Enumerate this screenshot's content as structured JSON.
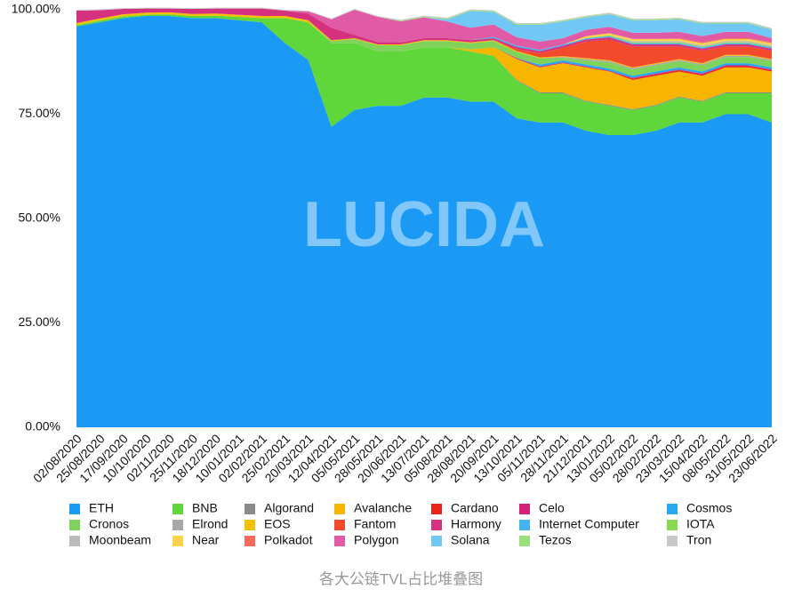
{
  "chart_data": {
    "type": "stacked_area_percent",
    "title": "各大公链TVL占比堆叠图",
    "watermark": "LUCIDA",
    "categories": [
      "02/08/2020",
      "25/08/2020",
      "17/09/2020",
      "10/10/2020",
      "02/11/2020",
      "25/11/2020",
      "18/12/2020",
      "10/01/2021",
      "02/02/2021",
      "25/02/2021",
      "20/03/2021",
      "12/04/2021",
      "05/05/2021",
      "28/05/2021",
      "20/06/2021",
      "13/07/2021",
      "05/08/2021",
      "28/08/2021",
      "20/09/2021",
      "13/10/2021",
      "05/11/2021",
      "28/11/2021",
      "21/12/2021",
      "13/01/2022",
      "05/02/2022",
      "28/02/2022",
      "23/03/2022",
      "15/04/2022",
      "08/05/2022",
      "31/05/2022",
      "23/06/2022"
    ],
    "ylim": [
      0,
      100
    ],
    "yticks": [
      {
        "value": 0,
        "label": "0.00%"
      },
      {
        "value": 25,
        "label": "25.00%"
      },
      {
        "value": 50,
        "label": "50.00%"
      },
      {
        "value": 75,
        "label": "75.00%"
      },
      {
        "value": 100,
        "label": "100.00%"
      }
    ],
    "series": [
      {
        "name": "ETH",
        "color": "#1a9af5",
        "values": [
          96,
          97,
          98,
          98.5,
          98.5,
          98,
          98,
          97.5,
          97,
          92,
          88,
          72,
          76,
          77,
          77,
          79,
          79,
          78,
          78,
          74,
          73,
          73,
          71,
          70,
          70,
          71,
          73,
          73,
          75,
          75,
          73
        ]
      },
      {
        "name": "BNB",
        "color": "#5fd63a",
        "values": [
          0.3,
          0.4,
          0.4,
          0.3,
          0.4,
          0.5,
          0.6,
          0.8,
          1,
          6,
          9,
          20,
          16,
          13,
          13,
          12,
          12,
          12,
          11,
          9,
          7,
          7,
          7,
          7,
          6,
          6,
          6,
          5,
          5,
          5,
          7
        ]
      },
      {
        "name": "Algorand",
        "color": "#8a8a8a",
        "values": [
          0,
          0,
          0,
          0,
          0,
          0,
          0,
          0,
          0,
          0,
          0,
          0,
          0,
          0,
          0,
          0,
          0,
          0,
          0,
          0.2,
          0.2,
          0.2,
          0.2,
          0.2,
          0.2,
          0.2,
          0.2,
          0.2,
          0.2,
          0.2,
          0.2
        ]
      },
      {
        "name": "Avalanche",
        "color": "#f7b500",
        "values": [
          0,
          0,
          0,
          0,
          0,
          0,
          0,
          0,
          0,
          0,
          0,
          0,
          0,
          0,
          0,
          0,
          0,
          0.5,
          2,
          5,
          6,
          7,
          8,
          8,
          7,
          7,
          6,
          6,
          6,
          6,
          5
        ]
      },
      {
        "name": "Cardano",
        "color": "#e8251b",
        "values": [
          0,
          0,
          0,
          0,
          0,
          0,
          0,
          0,
          0,
          0,
          0,
          0,
          0,
          0,
          0,
          0,
          0,
          0,
          0,
          0,
          0,
          0,
          0,
          0,
          0.3,
          0.3,
          0.3,
          0.3,
          0.3,
          0.3,
          0.3
        ]
      },
      {
        "name": "Celo",
        "color": "#d6217a",
        "values": [
          0,
          0,
          0,
          0,
          0,
          0,
          0,
          0,
          0,
          0,
          0,
          0,
          0,
          0,
          0,
          0,
          0,
          0,
          0,
          0.2,
          0.2,
          0.2,
          0.2,
          0.2,
          0.2,
          0.2,
          0.2,
          0.2,
          0.2,
          0.2,
          0.2
        ]
      },
      {
        "name": "Cosmos",
        "color": "#27a8f0",
        "values": [
          0,
          0,
          0,
          0,
          0,
          0,
          0,
          0,
          0,
          0,
          0,
          0,
          0,
          0,
          0,
          0,
          0,
          0,
          0,
          0,
          0.5,
          0.5,
          0.5,
          0.5,
          0.5,
          0.5,
          0.5,
          0.5,
          0.5,
          0.5,
          0.5
        ]
      },
      {
        "name": "Cronos",
        "color": "#7fd35a",
        "values": [
          0,
          0,
          0,
          0,
          0,
          0,
          0,
          0,
          0,
          0,
          0,
          0.5,
          1,
          1.5,
          1.5,
          1.5,
          1.5,
          1.5,
          1.5,
          1.5,
          1.5,
          0.5,
          1,
          1.5,
          1.5,
          1.5,
          1.5,
          1.5,
          1.5,
          1.5,
          1.5
        ]
      },
      {
        "name": "Elrond",
        "color": "#a8a8a8",
        "values": [
          0,
          0,
          0,
          0,
          0,
          0,
          0,
          0,
          0,
          0,
          0,
          0,
          0,
          0,
          0,
          0,
          0,
          0,
          0,
          0,
          0,
          0.3,
          0.3,
          0.3,
          0.3,
          0.3,
          0.3,
          0.3,
          0.3,
          0.3,
          0.3
        ]
      },
      {
        "name": "EOS",
        "color": "#f2c200",
        "values": [
          0.5,
          0.5,
          0.5,
          0.5,
          0.5,
          0.5,
          0.5,
          0.5,
          0.5,
          0.5,
          0.5,
          0.2,
          0.2,
          0.2,
          0.2,
          0.2,
          0.2,
          0.2,
          0.2,
          0.2,
          0.2,
          0.2,
          0.2,
          0.2,
          0.2,
          0.2,
          0.2,
          0.2,
          0.2,
          0.2,
          0.2
        ]
      },
      {
        "name": "Fantom",
        "color": "#f24a2a",
        "values": [
          0,
          0,
          0,
          0,
          0,
          0,
          0,
          0,
          0,
          0,
          0,
          0,
          0,
          0,
          0,
          0,
          0,
          0,
          0,
          0.5,
          1,
          2,
          4,
          5,
          5,
          4,
          3,
          3,
          2,
          2,
          2
        ]
      },
      {
        "name": "Harmony",
        "color": "#d6317f",
        "values": [
          3,
          2,
          1.3,
          1,
          0.9,
          1.2,
          1.2,
          1.5,
          1.8,
          1.3,
          1.6,
          3,
          0.8,
          0.6,
          0.5,
          0.5,
          0.5,
          0.5,
          0.5,
          0.5,
          0.5,
          0.5,
          0.5,
          0.5,
          0.5,
          0.5,
          0.5,
          0.5,
          0.5,
          0.5,
          0.5
        ]
      },
      {
        "name": "Internet Computer",
        "color": "#46b2ee",
        "values": [
          0,
          0,
          0,
          0,
          0,
          0,
          0,
          0,
          0,
          0,
          0,
          0,
          0,
          0,
          0,
          0,
          0,
          0,
          0.3,
          0.3,
          0.3,
          0.3,
          0.3,
          0.3,
          0.3,
          0.3,
          0.3,
          0.3,
          0.3,
          0.3,
          0.3
        ]
      },
      {
        "name": "IOTA",
        "color": "#8ad84f",
        "values": [
          0,
          0,
          0,
          0,
          0,
          0,
          0,
          0,
          0,
          0,
          0,
          0,
          0,
          0,
          0,
          0,
          0,
          0,
          0,
          0,
          0,
          0,
          0,
          0.2,
          0.2,
          0.2,
          0.2,
          0.2,
          0.2,
          0.2,
          0.2
        ]
      },
      {
        "name": "Moonbeam",
        "color": "#bbbbbb",
        "values": [
          0,
          0,
          0,
          0,
          0,
          0,
          0,
          0,
          0,
          0,
          0,
          0,
          0,
          0,
          0,
          0,
          0,
          0,
          0,
          0,
          0,
          0,
          0,
          0,
          0.3,
          0.3,
          0.3,
          0.3,
          0.3,
          0.3,
          0.3
        ]
      },
      {
        "name": "Near",
        "color": "#fdd24b",
        "values": [
          0,
          0,
          0,
          0,
          0,
          0,
          0,
          0,
          0,
          0,
          0,
          0,
          0,
          0,
          0,
          0,
          0,
          0,
          0,
          0,
          0,
          0,
          0.5,
          0.5,
          0.5,
          0.5,
          0.5,
          0.5,
          0.5,
          0.5,
          0.5
        ]
      },
      {
        "name": "Polkadot",
        "color": "#f56a5a",
        "values": [
          0,
          0,
          0,
          0,
          0,
          0,
          0,
          0,
          0,
          0,
          0,
          0,
          0,
          0,
          0,
          0,
          0,
          0,
          0,
          0,
          0,
          0,
          0,
          0,
          0,
          0,
          0.2,
          0.2,
          0.2,
          0.2,
          0.2
        ]
      },
      {
        "name": "Polygon",
        "color": "#e05aa6",
        "values": [
          0,
          0,
          0,
          0,
          0,
          0,
          0,
          0,
          0,
          0,
          0.5,
          2,
          6,
          6,
          5,
          5,
          4,
          3,
          3,
          2,
          2,
          1.5,
          1.5,
          1.5,
          1.5,
          1.5,
          1.5,
          1.5,
          1.5,
          1.5,
          1
        ]
      },
      {
        "name": "Solana",
        "color": "#72c8f5",
        "values": [
          0,
          0,
          0,
          0,
          0,
          0,
          0,
          0,
          0,
          0,
          0,
          0,
          0,
          0,
          0,
          0,
          0.5,
          4,
          3,
          3,
          4,
          4,
          3,
          3,
          3,
          3,
          3,
          3,
          2,
          2,
          2
        ]
      },
      {
        "name": "Tezos",
        "color": "#9be07d",
        "values": [
          0,
          0,
          0,
          0,
          0,
          0,
          0,
          0,
          0,
          0,
          0,
          0,
          0,
          0,
          0.2,
          0.2,
          0.2,
          0.2,
          0.2,
          0.2,
          0.2,
          0.2,
          0.2,
          0.2,
          0.2,
          0.2,
          0.2,
          0.2,
          0.2,
          0.2,
          0.2
        ]
      },
      {
        "name": "Tron",
        "color": "#c8c8c8",
        "values": [
          0.2,
          0.2,
          0.2,
          0.2,
          0.2,
          0.2,
          0.2,
          0.2,
          0.2,
          0.2,
          0.2,
          0.2,
          0.2,
          0.2,
          0.2,
          0.2,
          0.2,
          0.2,
          0.2,
          0.2,
          0.2,
          0.2,
          0.2,
          0.2,
          0.2,
          0.2,
          0.2,
          0.2,
          0.2,
          0.2,
          0.2
        ]
      }
    ]
  }
}
